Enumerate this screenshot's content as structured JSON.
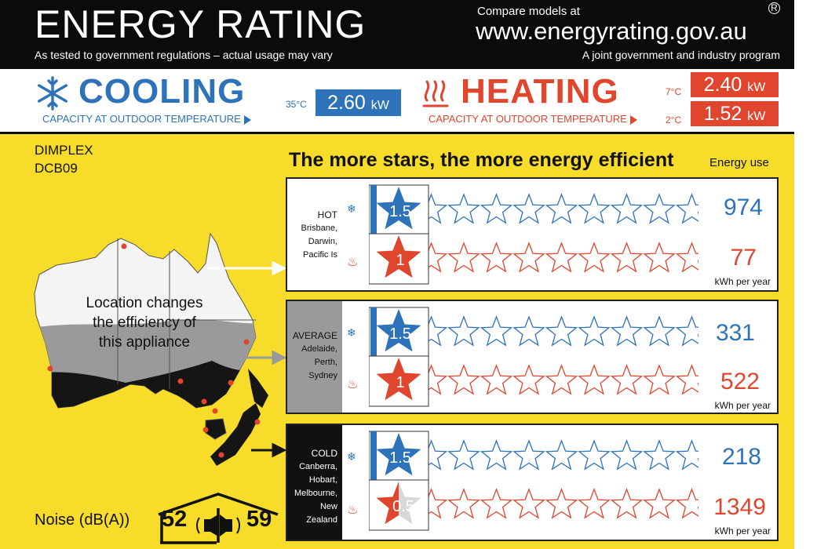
{
  "header": {
    "title": "ENERGY RATING",
    "subtitle": "As tested to government regulations – actual usage may vary",
    "compare": "Compare models at",
    "url": "www.energyrating.gov.au",
    "joint": "A joint government and industry program",
    "registered": "R"
  },
  "capacity": {
    "cooling": {
      "title": "COOLING",
      "sub": "CAPACITY AT OUTDOOR TEMPERATURE",
      "temp": "35°C",
      "value": "2.60",
      "unit": "kW",
      "color": "#2e73b9"
    },
    "heating": {
      "title": "HEATING",
      "sub": "CAPACITY AT OUTDOOR TEMPERATURE",
      "temp1": "7°C",
      "value1": "2.40",
      "temp2": "2°C",
      "value2": "1.52",
      "unit": "kW",
      "color": "#e0452e"
    }
  },
  "model": {
    "brand": "DIMPLEX",
    "code": "DCB09"
  },
  "headline": "The more stars, the more energy efficient",
  "energy_use_label": "Energy use",
  "kwh_label": "kWh per year",
  "max_stars": 10,
  "zones": [
    {
      "name": "HOT",
      "cities": [
        "Brisbane,",
        "Darwin,",
        "Pacific Is"
      ],
      "cooling": {
        "stars": 1.5,
        "stars_label": "1.5",
        "energy": "974"
      },
      "heating": {
        "stars": 1,
        "stars_label": "1",
        "energy": "77"
      }
    },
    {
      "name": "AVERAGE",
      "cities": [
        "Adelaide,",
        "Perth,",
        "Sydney"
      ],
      "cooling": {
        "stars": 1.5,
        "stars_label": "1.5",
        "energy": "331"
      },
      "heating": {
        "stars": 1,
        "stars_label": "1",
        "energy": "522"
      }
    },
    {
      "name": "COLD",
      "cities": [
        "Canberra,",
        "Hobart,",
        "Melbourne,",
        "New Zealand"
      ],
      "cooling": {
        "stars": 1.5,
        "stars_label": "1.5",
        "energy": "218"
      },
      "heating": {
        "stars": 0.5,
        "stars_label": "0.5",
        "energy": "1349"
      }
    }
  ],
  "map": {
    "text_lines": [
      "Location changes",
      "the efficiency of",
      "this appliance"
    ]
  },
  "noise": {
    "label": "Noise (dB(A))",
    "indoor": "52",
    "outdoor": "59"
  },
  "colors": {
    "cool": "#2e73b9",
    "heat": "#e0452e",
    "label_bg": "#f7dd2a",
    "hot_zone": "#ffffff",
    "avg_zone": "#9a9a9a",
    "cold_zone": "#111111"
  },
  "icons": {
    "cooling": "snowflake-icon",
    "heating": "heat-waves-icon",
    "house": "house-noise-icon",
    "speaker": "speaker-icon"
  }
}
